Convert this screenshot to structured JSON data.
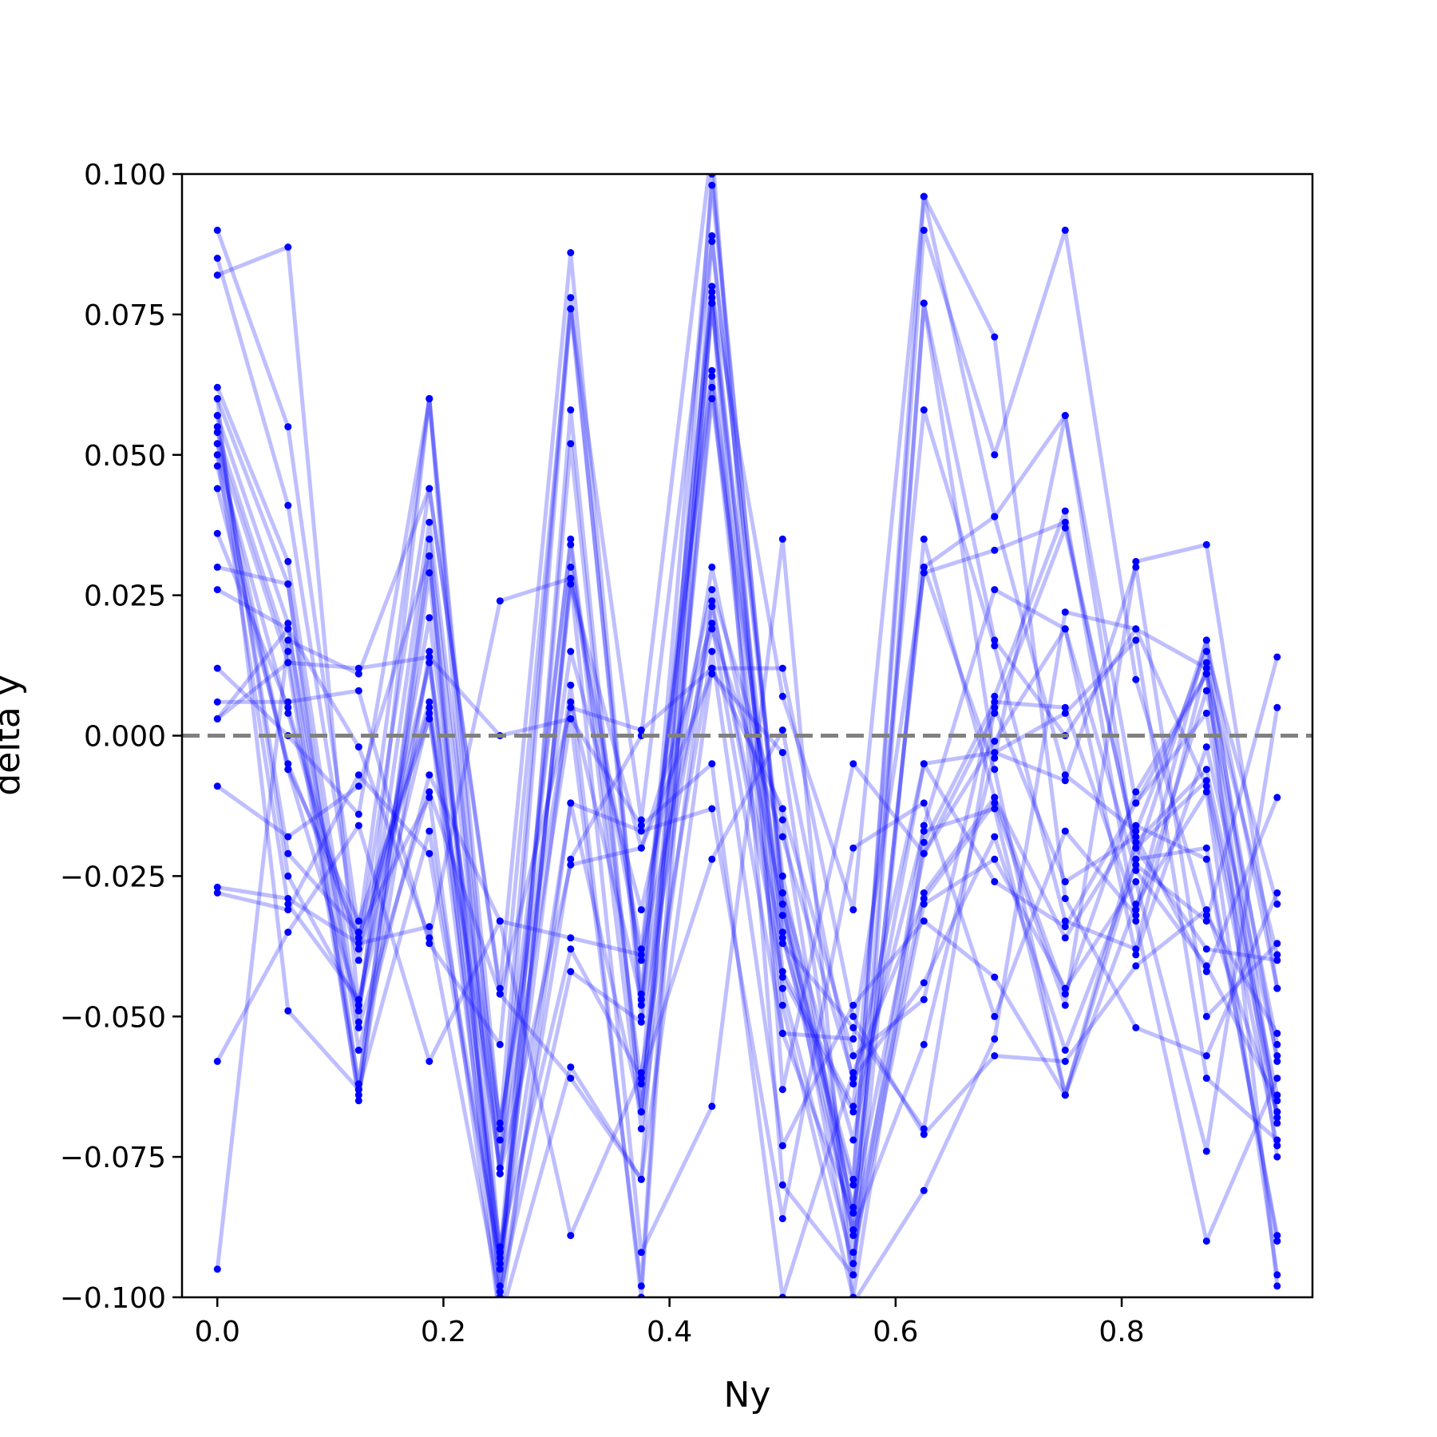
{
  "chart_data": {
    "type": "line",
    "title": "",
    "xlabel": "Ny",
    "ylabel": "delta y",
    "xlim": [
      -0.03125,
      0.96875
    ],
    "ylim": [
      -0.1,
      0.1
    ],
    "xticks": [
      {
        "value": 0.0,
        "label": "0.0"
      },
      {
        "value": 0.2,
        "label": "0.2"
      },
      {
        "value": 0.4,
        "label": "0.4"
      },
      {
        "value": 0.6,
        "label": "0.6"
      },
      {
        "value": 0.8,
        "label": "0.8"
      }
    ],
    "yticks": [
      {
        "value": 0.1,
        "label": "0.100"
      },
      {
        "value": 0.075,
        "label": "0.075"
      },
      {
        "value": 0.05,
        "label": "0.050"
      },
      {
        "value": 0.025,
        "label": "0.025"
      },
      {
        "value": 0.0,
        "label": "0.000"
      },
      {
        "value": -0.025,
        "label": "−0.025"
      },
      {
        "value": -0.05,
        "label": "−0.050"
      },
      {
        "value": -0.075,
        "label": "−0.075"
      },
      {
        "value": -0.1,
        "label": "−0.100"
      }
    ],
    "reference_line": {
      "y": 0.0,
      "style": "dashed",
      "color": "#808080"
    },
    "grid": false,
    "legend": "none",
    "x": [
      0.0,
      0.0625,
      0.125,
      0.1875,
      0.25,
      0.3125,
      0.375,
      0.4375,
      0.5,
      0.5625,
      0.625,
      0.6875,
      0.75,
      0.8125,
      0.875,
      0.9375
    ],
    "series": [
      {
        "values": [
          0.09,
          0.055,
          -0.035,
          0.06,
          -0.077,
          0.076,
          -0.015,
          0.088,
          -0.025,
          -0.085,
          0.03,
          0.039,
          -0.007,
          -0.017,
          0.015,
          -0.03
        ]
      },
      {
        "values": [
          0.085,
          0.041,
          -0.038,
          0.044,
          -0.045,
          0.086,
          -0.048,
          0.098,
          -0.028,
          -0.089,
          0.077,
          -0.004,
          0.057,
          -0.022,
          0.017,
          -0.045
        ]
      },
      {
        "values": [
          0.082,
          0.087,
          -0.049,
          0.038,
          -0.07,
          0.078,
          -0.05,
          0.08,
          -0.042,
          -0.066,
          0.058,
          0.016,
          -0.033,
          -0.038,
          0.013,
          -0.058
        ]
      },
      {
        "values": [
          0.062,
          0.031,
          -0.051,
          0.06,
          -0.093,
          0.052,
          -0.067,
          0.062,
          -0.053,
          -0.054,
          0.029,
          0.033,
          0.038,
          -0.02,
          -0.008,
          -0.067
        ]
      },
      {
        "values": [
          0.06,
          0.027,
          -0.063,
          0.035,
          -0.078,
          0.035,
          -0.062,
          0.077,
          -0.045,
          -0.094,
          -0.016,
          0.026,
          0.019,
          -0.024,
          -0.041,
          -0.065
        ]
      },
      {
        "values": [
          0.057,
          0.02,
          -0.065,
          0.029,
          -0.099,
          0.03,
          -0.038,
          0.064,
          -0.048,
          -0.1,
          -0.019,
          0.006,
          0.005,
          -0.031,
          0.017,
          -0.069
        ]
      },
      {
        "values": [
          0.054,
          0.015,
          -0.062,
          0.032,
          -0.095,
          0.028,
          -0.04,
          0.065,
          -0.035,
          -0.088,
          -0.028,
          -0.011,
          -0.046,
          -0.01,
          0.011,
          -0.075
        ]
      },
      {
        "values": [
          0.052,
          0.013,
          -0.064,
          0.015,
          -0.104,
          -0.012,
          -0.067,
          0.06,
          -0.032,
          -0.079,
          0.09,
          0.05,
          0.09,
          0.01,
          -0.032,
          -0.053
        ]
      },
      {
        "values": [
          0.05,
          0.004,
          -0.04,
          0.013,
          -0.069,
          0.006,
          -0.047,
          0.03,
          -0.03,
          -0.084,
          -0.021,
          0.004,
          0.037,
          -0.02,
          -0.038,
          -0.04
        ]
      },
      {
        "values": [
          0.048,
          -0.006,
          -0.033,
          0.003,
          -0.072,
          0.034,
          -0.07,
          0.024,
          -0.043,
          -0.067,
          -0.017,
          -0.013,
          -0.064,
          -0.03,
          -0.01,
          -0.096
        ]
      },
      {
        "values": [
          0.044,
          -0.005,
          -0.036,
          0.006,
          -0.092,
          0.009,
          -0.1,
          0.078,
          -0.08,
          -0.096,
          0.035,
          -0.011,
          -0.036,
          -0.016,
          -0.022,
          -0.089
        ]
      },
      {
        "values": [
          0.036,
          0.005,
          -0.038,
          0.005,
          -0.077,
          0.003,
          -0.098,
          0.089,
          -0.028,
          -0.072,
          -0.005,
          -0.003,
          -0.008,
          0.03,
          -0.05,
          -0.037
        ]
      },
      {
        "values": [
          0.03,
          0.027,
          -0.056,
          -0.007,
          -0.033,
          -0.036,
          -0.039,
          0.019,
          -0.018,
          -0.061,
          -0.044,
          -0.018,
          -0.056,
          -0.023,
          -0.033,
          0.014
        ]
      },
      {
        "values": [
          0.026,
          0.019,
          -0.052,
          -0.01,
          -0.046,
          -0.061,
          -0.079,
          0.012,
          -0.013,
          -0.057,
          -0.047,
          0.007,
          0.04,
          -0.033,
          -0.09,
          -0.061
        ]
      },
      {
        "values": [
          0.012,
          0.0,
          -0.014,
          0.06,
          -0.07,
          0.015,
          -0.031,
          0.026,
          -0.015,
          -0.092,
          -0.03,
          -0.022,
          -0.045,
          -0.026,
          -0.074,
          0.005
        ]
      },
      {
        "values": [
          0.006,
          0.006,
          0.008,
          -0.037,
          -0.055,
          0.076,
          -0.046,
          0.079,
          0.007,
          -0.031,
          0.096,
          0.071,
          -0.029,
          -0.052,
          -0.057,
          -0.028
        ]
      },
      {
        "values": [
          0.003,
          0.019,
          -0.002,
          -0.036,
          0.024,
          0.028,
          -0.092,
          -0.066,
          0.035,
          -0.101,
          -0.081,
          -0.054,
          0.022,
          0.019,
          -0.009,
          -0.073
        ]
      },
      {
        "values": [
          0.003,
          0.013,
          0.012,
          0.014,
          0.0,
          0.003,
          -0.016,
          -0.005,
          -0.1,
          -0.06,
          -0.029,
          -0.012,
          -0.048,
          0.031,
          0.034,
          -0.045
        ]
      },
      {
        "values": [
          -0.009,
          -0.018,
          -0.009,
          0.032,
          -0.099,
          -0.042,
          -0.051,
          0.023,
          -0.037,
          -0.052,
          -0.07,
          0.005,
          -0.026,
          -0.018,
          -0.042,
          -0.011
        ]
      },
      {
        "values": [
          -0.027,
          -0.029,
          -0.037,
          -0.034,
          -0.1,
          -0.022,
          0.0,
          0.105,
          -0.063,
          -0.005,
          -0.021,
          -0.001,
          0.019,
          -0.039,
          -0.002,
          -0.057
        ]
      },
      {
        "values": [
          -0.028,
          -0.031,
          -0.007,
          -0.021,
          -0.094,
          -0.012,
          -0.017,
          -0.013,
          -0.086,
          -0.02,
          -0.012,
          -0.05,
          -0.017,
          -0.032,
          0.008,
          -0.055
        ]
      },
      {
        "values": [
          -0.058,
          -0.035,
          -0.016,
          -0.058,
          -0.033,
          -0.089,
          -0.06,
          0.015,
          -0.073,
          -0.048,
          -0.033,
          -0.043,
          -0.064,
          -0.022,
          -0.02,
          -0.09
        ]
      },
      {
        "values": [
          -0.095,
          0.017,
          0.011,
          0.044,
          -0.046,
          0.005,
          0.001,
          0.012,
          0.012,
          -0.05,
          -0.071,
          -0.057,
          -0.058,
          -0.041,
          -0.031,
          -0.067
        ]
      },
      {
        "values": [
          0.057,
          -0.025,
          -0.048,
          0.021,
          -0.078,
          -0.023,
          -0.02,
          0.02,
          -0.053,
          -0.085,
          0.03,
          -0.006,
          -0.064,
          -0.019,
          -0.006,
          -0.064
        ]
      },
      {
        "values": [
          0.05,
          -0.03,
          -0.047,
          0.013,
          -0.091,
          -0.038,
          -0.061,
          -0.022,
          0.001,
          -0.062,
          -0.005,
          -0.026,
          -0.034,
          -0.012,
          0.004,
          -0.068
        ]
      },
      {
        "values": [
          0.06,
          -0.049,
          -0.063,
          -0.017,
          -0.094,
          0.027,
          -0.02,
          0.011,
          -0.003,
          -0.088,
          -0.055,
          -0.003,
          0.004,
          0.017,
          -0.061,
          -0.072
        ]
      },
      {
        "values": [
          0.055,
          -0.021,
          -0.035,
          -0.011,
          -0.104,
          -0.059,
          -0.079,
          0.1,
          -0.03,
          -0.096,
          0.077,
          0.017,
          0.0,
          0.019,
          0.012,
          -0.098
        ]
      },
      {
        "values": [
          0.052,
          -0.006,
          -0.048,
          0.004,
          -0.098,
          0.058,
          -0.067,
          0.077,
          -0.036,
          -0.08,
          0.096,
          0.039,
          0.057,
          -0.012,
          0.011,
          -0.039
        ]
      }
    ]
  }
}
